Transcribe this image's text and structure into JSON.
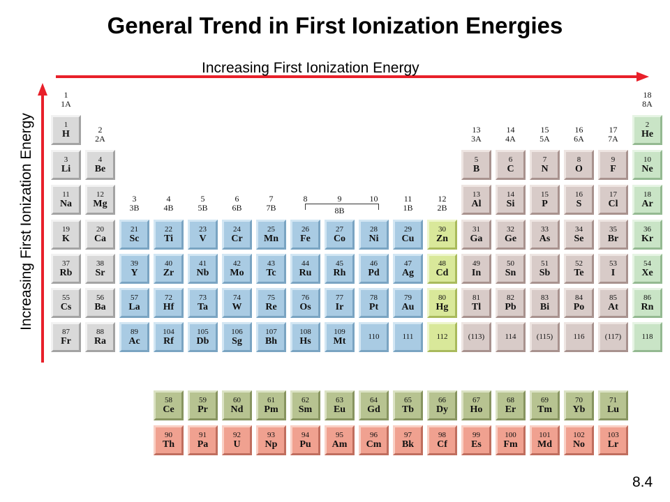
{
  "title": "General Trend in First Ionization Energies",
  "horizontal_label": "Increasing First Ionization Energy",
  "vertical_label": "Increasing First Ionization Energy",
  "slide_number": "8.4",
  "colors": {
    "arrow": "#e8202a",
    "main_group": "#d8cbc8",
    "transition": "#a9cbe3",
    "group_12": "#d9e89a",
    "noble_gas": "#c9e4c6",
    "alkali": "#d9d9d9",
    "lanthanide": "#b7c391",
    "actinide": "#f0a190"
  },
  "group_labels": [
    {
      "col": 1,
      "row": 0,
      "num": "1",
      "old": "1A"
    },
    {
      "col": 2,
      "row": 1,
      "num": "2",
      "old": "2A"
    },
    {
      "col": 3,
      "row": 3,
      "num": "3",
      "old": "3B"
    },
    {
      "col": 4,
      "row": 3,
      "num": "4",
      "old": "4B"
    },
    {
      "col": 5,
      "row": 3,
      "num": "5",
      "old": "5B"
    },
    {
      "col": 6,
      "row": 3,
      "num": "6",
      "old": "6B"
    },
    {
      "col": 7,
      "row": 3,
      "num": "7",
      "old": "7B"
    },
    {
      "col": 8,
      "row": 3,
      "num": "8",
      "old": ""
    },
    {
      "col": 9,
      "row": 3,
      "num": "9",
      "old": "8B"
    },
    {
      "col": 10,
      "row": 3,
      "num": "10",
      "old": ""
    },
    {
      "col": 11,
      "row": 3,
      "num": "11",
      "old": "1B"
    },
    {
      "col": 12,
      "row": 3,
      "num": "12",
      "old": "2B"
    },
    {
      "col": 13,
      "row": 1,
      "num": "13",
      "old": "3A"
    },
    {
      "col": 14,
      "row": 1,
      "num": "14",
      "old": "4A"
    },
    {
      "col": 15,
      "row": 1,
      "num": "15",
      "old": "5A"
    },
    {
      "col": 16,
      "row": 1,
      "num": "16",
      "old": "6A"
    },
    {
      "col": 17,
      "row": 1,
      "num": "17",
      "old": "7A"
    },
    {
      "col": 18,
      "row": 0,
      "num": "18",
      "old": "8A"
    }
  ],
  "elements": [
    {
      "n": "1",
      "s": "H",
      "p": 1,
      "g": 1,
      "t": "alk"
    },
    {
      "n": "2",
      "s": "He",
      "p": 1,
      "g": 18,
      "t": "noble"
    },
    {
      "n": "3",
      "s": "Li",
      "p": 2,
      "g": 1,
      "t": "alk"
    },
    {
      "n": "4",
      "s": "Be",
      "p": 2,
      "g": 2,
      "t": "alk"
    },
    {
      "n": "5",
      "s": "B",
      "p": 2,
      "g": 13,
      "t": "main"
    },
    {
      "n": "6",
      "s": "C",
      "p": 2,
      "g": 14,
      "t": "main"
    },
    {
      "n": "7",
      "s": "N",
      "p": 2,
      "g": 15,
      "t": "main"
    },
    {
      "n": "8",
      "s": "O",
      "p": 2,
      "g": 16,
      "t": "main"
    },
    {
      "n": "9",
      "s": "F",
      "p": 2,
      "g": 17,
      "t": "main"
    },
    {
      "n": "10",
      "s": "Ne",
      "p": 2,
      "g": 18,
      "t": "noble"
    },
    {
      "n": "11",
      "s": "Na",
      "p": 3,
      "g": 1,
      "t": "alk"
    },
    {
      "n": "12",
      "s": "Mg",
      "p": 3,
      "g": 2,
      "t": "alk"
    },
    {
      "n": "13",
      "s": "Al",
      "p": 3,
      "g": 13,
      "t": "main"
    },
    {
      "n": "14",
      "s": "Si",
      "p": 3,
      "g": 14,
      "t": "main"
    },
    {
      "n": "15",
      "s": "P",
      "p": 3,
      "g": 15,
      "t": "main"
    },
    {
      "n": "16",
      "s": "S",
      "p": 3,
      "g": 16,
      "t": "main"
    },
    {
      "n": "17",
      "s": "Cl",
      "p": 3,
      "g": 17,
      "t": "main"
    },
    {
      "n": "18",
      "s": "Ar",
      "p": 3,
      "g": 18,
      "t": "noble"
    },
    {
      "n": "19",
      "s": "K",
      "p": 4,
      "g": 1,
      "t": "alk"
    },
    {
      "n": "20",
      "s": "Ca",
      "p": 4,
      "g": 2,
      "t": "alk"
    },
    {
      "n": "21",
      "s": "Sc",
      "p": 4,
      "g": 3,
      "t": "trans"
    },
    {
      "n": "22",
      "s": "Ti",
      "p": 4,
      "g": 4,
      "t": "trans"
    },
    {
      "n": "23",
      "s": "V",
      "p": 4,
      "g": 5,
      "t": "trans"
    },
    {
      "n": "24",
      "s": "Cr",
      "p": 4,
      "g": 6,
      "t": "trans"
    },
    {
      "n": "25",
      "s": "Mn",
      "p": 4,
      "g": 7,
      "t": "trans"
    },
    {
      "n": "26",
      "s": "Fe",
      "p": 4,
      "g": 8,
      "t": "trans"
    },
    {
      "n": "27",
      "s": "Co",
      "p": 4,
      "g": 9,
      "t": "trans"
    },
    {
      "n": "28",
      "s": "Ni",
      "p": 4,
      "g": 10,
      "t": "trans"
    },
    {
      "n": "29",
      "s": "Cu",
      "p": 4,
      "g": 11,
      "t": "trans"
    },
    {
      "n": "30",
      "s": "Zn",
      "p": 4,
      "g": 12,
      "t": "zn"
    },
    {
      "n": "31",
      "s": "Ga",
      "p": 4,
      "g": 13,
      "t": "main"
    },
    {
      "n": "32",
      "s": "Ge",
      "p": 4,
      "g": 14,
      "t": "main"
    },
    {
      "n": "33",
      "s": "As",
      "p": 4,
      "g": 15,
      "t": "main"
    },
    {
      "n": "34",
      "s": "Se",
      "p": 4,
      "g": 16,
      "t": "main"
    },
    {
      "n": "35",
      "s": "Br",
      "p": 4,
      "g": 17,
      "t": "main"
    },
    {
      "n": "36",
      "s": "Kr",
      "p": 4,
      "g": 18,
      "t": "noble"
    },
    {
      "n": "37",
      "s": "Rb",
      "p": 5,
      "g": 1,
      "t": "alk"
    },
    {
      "n": "38",
      "s": "Sr",
      "p": 5,
      "g": 2,
      "t": "alk"
    },
    {
      "n": "39",
      "s": "Y",
      "p": 5,
      "g": 3,
      "t": "trans"
    },
    {
      "n": "40",
      "s": "Zr",
      "p": 5,
      "g": 4,
      "t": "trans"
    },
    {
      "n": "41",
      "s": "Nb",
      "p": 5,
      "g": 5,
      "t": "trans"
    },
    {
      "n": "42",
      "s": "Mo",
      "p": 5,
      "g": 6,
      "t": "trans"
    },
    {
      "n": "43",
      "s": "Tc",
      "p": 5,
      "g": 7,
      "t": "trans"
    },
    {
      "n": "44",
      "s": "Ru",
      "p": 5,
      "g": 8,
      "t": "trans"
    },
    {
      "n": "45",
      "s": "Rh",
      "p": 5,
      "g": 9,
      "t": "trans"
    },
    {
      "n": "46",
      "s": "Pd",
      "p": 5,
      "g": 10,
      "t": "trans"
    },
    {
      "n": "47",
      "s": "Ag",
      "p": 5,
      "g": 11,
      "t": "trans"
    },
    {
      "n": "48",
      "s": "Cd",
      "p": 5,
      "g": 12,
      "t": "zn"
    },
    {
      "n": "49",
      "s": "In",
      "p": 5,
      "g": 13,
      "t": "main"
    },
    {
      "n": "50",
      "s": "Sn",
      "p": 5,
      "g": 14,
      "t": "main"
    },
    {
      "n": "51",
      "s": "Sb",
      "p": 5,
      "g": 15,
      "t": "main"
    },
    {
      "n": "52",
      "s": "Te",
      "p": 5,
      "g": 16,
      "t": "main"
    },
    {
      "n": "53",
      "s": "I",
      "p": 5,
      "g": 17,
      "t": "main"
    },
    {
      "n": "54",
      "s": "Xe",
      "p": 5,
      "g": 18,
      "t": "noble"
    },
    {
      "n": "55",
      "s": "Cs",
      "p": 6,
      "g": 1,
      "t": "alk"
    },
    {
      "n": "56",
      "s": "Ba",
      "p": 6,
      "g": 2,
      "t": "alk"
    },
    {
      "n": "57",
      "s": "La",
      "p": 6,
      "g": 3,
      "t": "trans"
    },
    {
      "n": "72",
      "s": "Hf",
      "p": 6,
      "g": 4,
      "t": "trans"
    },
    {
      "n": "73",
      "s": "Ta",
      "p": 6,
      "g": 5,
      "t": "trans"
    },
    {
      "n": "74",
      "s": "W",
      "p": 6,
      "g": 6,
      "t": "trans"
    },
    {
      "n": "75",
      "s": "Re",
      "p": 6,
      "g": 7,
      "t": "trans"
    },
    {
      "n": "76",
      "s": "Os",
      "p": 6,
      "g": 8,
      "t": "trans"
    },
    {
      "n": "77",
      "s": "Ir",
      "p": 6,
      "g": 9,
      "t": "trans"
    },
    {
      "n": "78",
      "s": "Pt",
      "p": 6,
      "g": 10,
      "t": "trans"
    },
    {
      "n": "79",
      "s": "Au",
      "p": 6,
      "g": 11,
      "t": "trans"
    },
    {
      "n": "80",
      "s": "Hg",
      "p": 6,
      "g": 12,
      "t": "zn"
    },
    {
      "n": "81",
      "s": "Tl",
      "p": 6,
      "g": 13,
      "t": "main"
    },
    {
      "n": "82",
      "s": "Pb",
      "p": 6,
      "g": 14,
      "t": "main"
    },
    {
      "n": "83",
      "s": "Bi",
      "p": 6,
      "g": 15,
      "t": "main"
    },
    {
      "n": "84",
      "s": "Po",
      "p": 6,
      "g": 16,
      "t": "main"
    },
    {
      "n": "85",
      "s": "At",
      "p": 6,
      "g": 17,
      "t": "main"
    },
    {
      "n": "86",
      "s": "Rn",
      "p": 6,
      "g": 18,
      "t": "noble"
    },
    {
      "n": "87",
      "s": "Fr",
      "p": 7,
      "g": 1,
      "t": "alk"
    },
    {
      "n": "88",
      "s": "Ra",
      "p": 7,
      "g": 2,
      "t": "alk"
    },
    {
      "n": "89",
      "s": "Ac",
      "p": 7,
      "g": 3,
      "t": "trans"
    },
    {
      "n": "104",
      "s": "Rf",
      "p": 7,
      "g": 4,
      "t": "trans"
    },
    {
      "n": "105",
      "s": "Db",
      "p": 7,
      "g": 5,
      "t": "trans"
    },
    {
      "n": "106",
      "s": "Sg",
      "p": 7,
      "g": 6,
      "t": "trans"
    },
    {
      "n": "107",
      "s": "Bh",
      "p": 7,
      "g": 7,
      "t": "trans"
    },
    {
      "n": "108",
      "s": "Hs",
      "p": 7,
      "g": 8,
      "t": "trans"
    },
    {
      "n": "109",
      "s": "Mt",
      "p": 7,
      "g": 9,
      "t": "trans"
    },
    {
      "n": "110",
      "s": "",
      "p": 7,
      "g": 10,
      "t": "trans"
    },
    {
      "n": "111",
      "s": "",
      "p": 7,
      "g": 11,
      "t": "trans"
    },
    {
      "n": "112",
      "s": "",
      "p": 7,
      "g": 12,
      "t": "zn"
    },
    {
      "n": "(113)",
      "s": "",
      "p": 7,
      "g": 13,
      "t": "main"
    },
    {
      "n": "114",
      "s": "",
      "p": 7,
      "g": 14,
      "t": "main"
    },
    {
      "n": "(115)",
      "s": "",
      "p": 7,
      "g": 15,
      "t": "main"
    },
    {
      "n": "116",
      "s": "",
      "p": 7,
      "g": 16,
      "t": "main"
    },
    {
      "n": "(117)",
      "s": "",
      "p": 7,
      "g": 17,
      "t": "main"
    },
    {
      "n": "118",
      "s": "",
      "p": 7,
      "g": 18,
      "t": "noble"
    },
    {
      "n": "58",
      "s": "Ce",
      "p": 8,
      "g": 4,
      "t": "lan"
    },
    {
      "n": "59",
      "s": "Pr",
      "p": 8,
      "g": 5,
      "t": "lan"
    },
    {
      "n": "60",
      "s": "Nd",
      "p": 8,
      "g": 6,
      "t": "lan"
    },
    {
      "n": "61",
      "s": "Pm",
      "p": 8,
      "g": 7,
      "t": "lan"
    },
    {
      "n": "62",
      "s": "Sm",
      "p": 8,
      "g": 8,
      "t": "lan"
    },
    {
      "n": "63",
      "s": "Eu",
      "p": 8,
      "g": 9,
      "t": "lan"
    },
    {
      "n": "64",
      "s": "Gd",
      "p": 8,
      "g": 10,
      "t": "lan"
    },
    {
      "n": "65",
      "s": "Tb",
      "p": 8,
      "g": 11,
      "t": "lan"
    },
    {
      "n": "66",
      "s": "Dy",
      "p": 8,
      "g": 12,
      "t": "lan"
    },
    {
      "n": "67",
      "s": "Ho",
      "p": 8,
      "g": 13,
      "t": "lan"
    },
    {
      "n": "68",
      "s": "Er",
      "p": 8,
      "g": 14,
      "t": "lan"
    },
    {
      "n": "69",
      "s": "Tm",
      "p": 8,
      "g": 15,
      "t": "lan"
    },
    {
      "n": "70",
      "s": "Yb",
      "p": 8,
      "g": 16,
      "t": "lan"
    },
    {
      "n": "71",
      "s": "Lu",
      "p": 8,
      "g": 17,
      "t": "lan"
    },
    {
      "n": "90",
      "s": "Th",
      "p": 9,
      "g": 4,
      "t": "act"
    },
    {
      "n": "91",
      "s": "Pa",
      "p": 9,
      "g": 5,
      "t": "act"
    },
    {
      "n": "92",
      "s": "U",
      "p": 9,
      "g": 6,
      "t": "act"
    },
    {
      "n": "93",
      "s": "Np",
      "p": 9,
      "g": 7,
      "t": "act"
    },
    {
      "n": "94",
      "s": "Pu",
      "p": 9,
      "g": 8,
      "t": "act"
    },
    {
      "n": "95",
      "s": "Am",
      "p": 9,
      "g": 9,
      "t": "act"
    },
    {
      "n": "96",
      "s": "Cm",
      "p": 9,
      "g": 10,
      "t": "act"
    },
    {
      "n": "97",
      "s": "Bk",
      "p": 9,
      "g": 11,
      "t": "act"
    },
    {
      "n": "98",
      "s": "Cf",
      "p": 9,
      "g": 12,
      "t": "act"
    },
    {
      "n": "99",
      "s": "Es",
      "p": 9,
      "g": 13,
      "t": "act"
    },
    {
      "n": "100",
      "s": "Fm",
      "p": 9,
      "g": 14,
      "t": "act"
    },
    {
      "n": "101",
      "s": "Md",
      "p": 9,
      "g": 15,
      "t": "act"
    },
    {
      "n": "102",
      "s": "No",
      "p": 9,
      "g": 16,
      "t": "act"
    },
    {
      "n": "103",
      "s": "Lr",
      "p": 9,
      "g": 17,
      "t": "act"
    }
  ]
}
